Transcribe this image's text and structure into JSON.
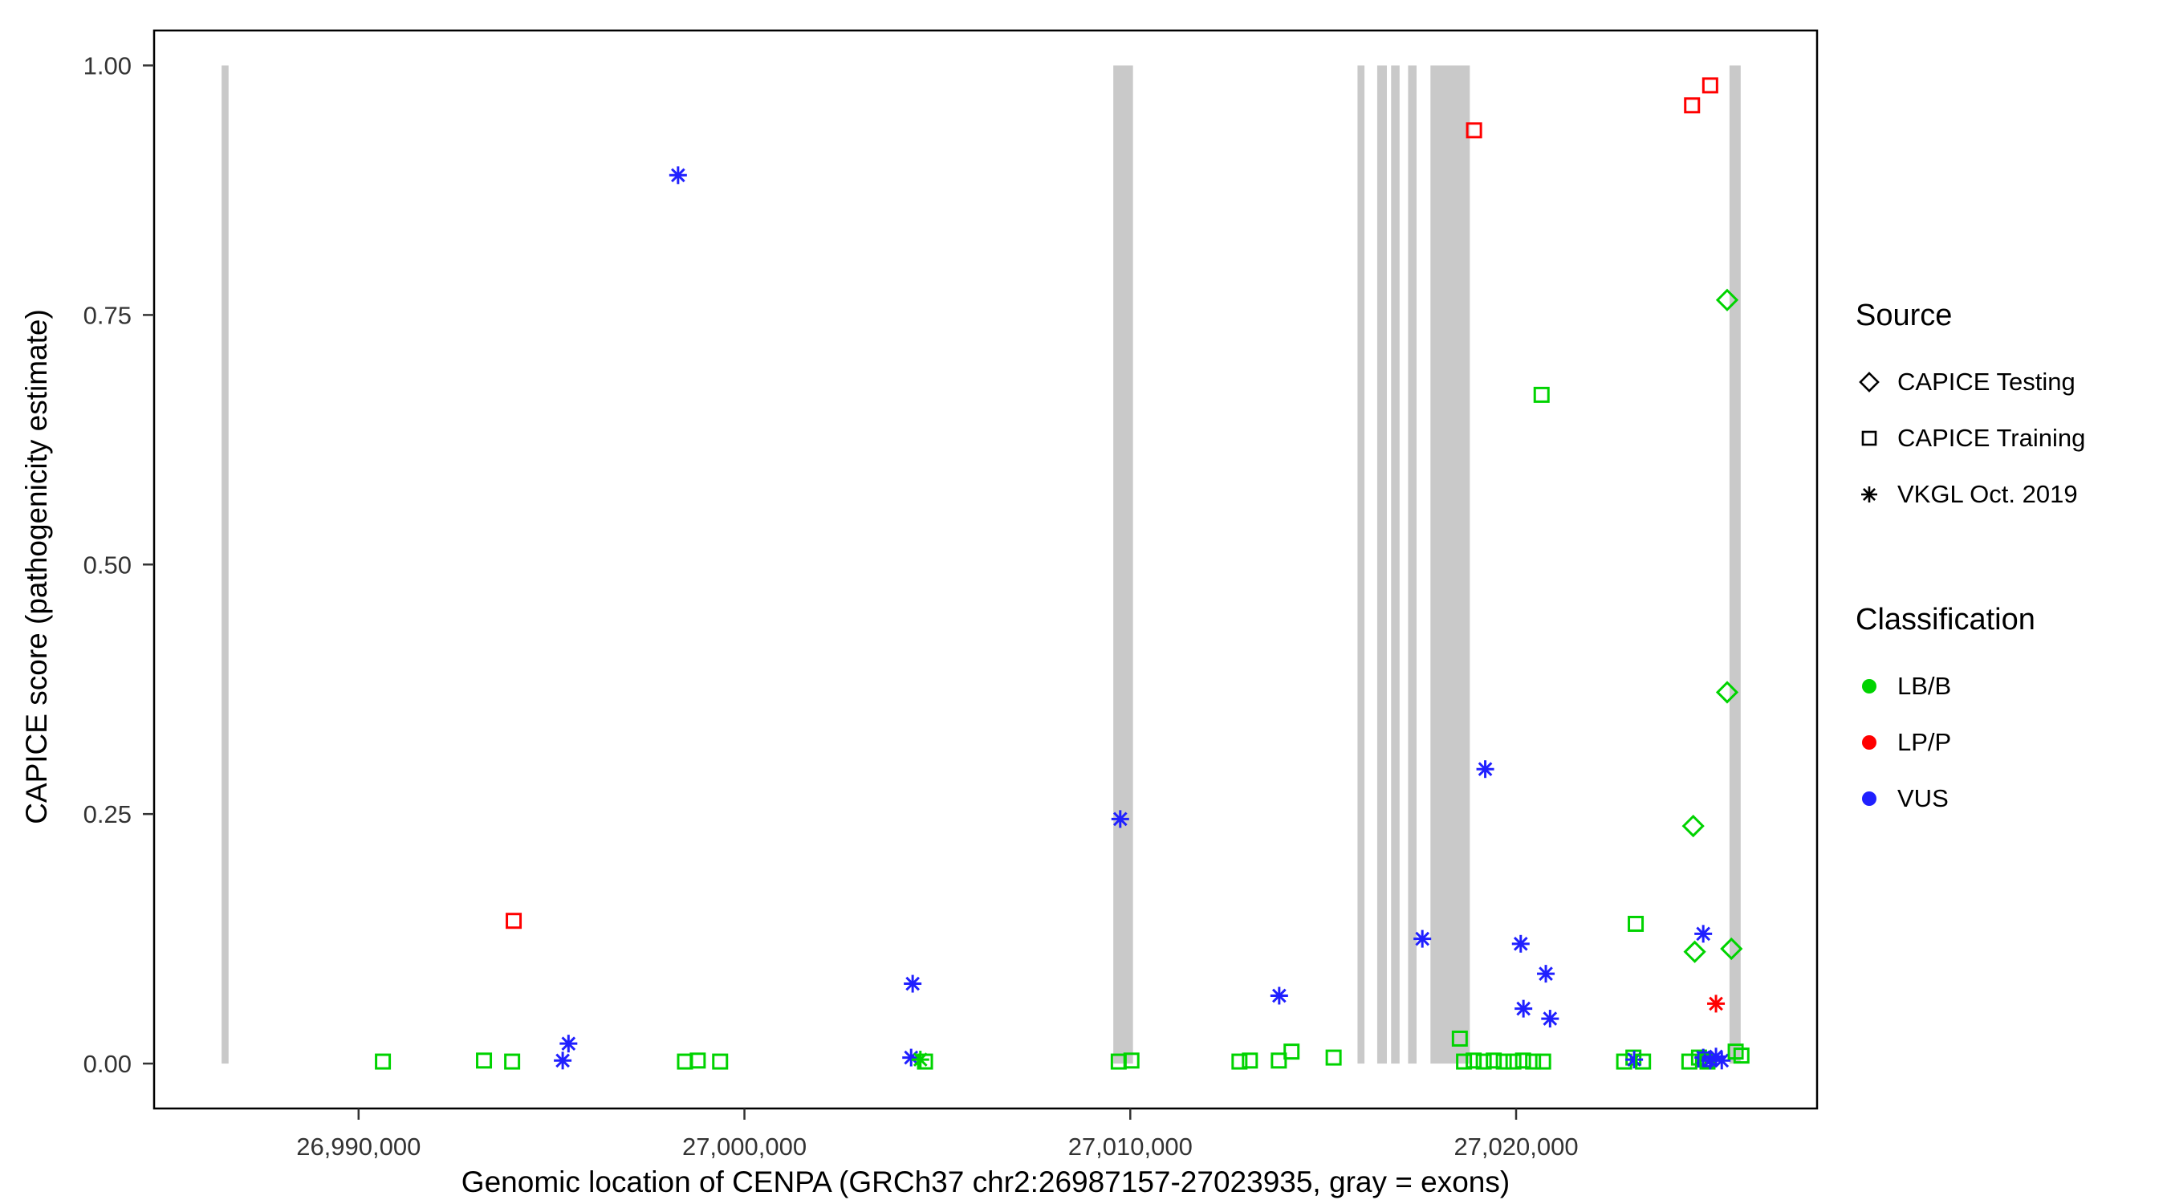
{
  "chart_data": {
    "type": "scatter",
    "title": "",
    "xlabel": "Genomic location of CENPA (GRCh37 chr2:26987157-27023935, gray = exons)",
    "ylabel": "CAPICE score (pathogenicity estimate)",
    "x_domain": [
      26984700,
      27027800
    ],
    "y_domain": [
      -0.045,
      1.035
    ],
    "x_ticks": [
      {
        "value": 26990000,
        "label": "26,990,000"
      },
      {
        "value": 27000000,
        "label": "27,000,000"
      },
      {
        "value": 27010000,
        "label": "27,010,000"
      },
      {
        "value": 27020000,
        "label": "27,020,000"
      }
    ],
    "y_ticks": [
      {
        "value": 0.0,
        "label": "0.00"
      },
      {
        "value": 0.25,
        "label": "0.25"
      },
      {
        "value": 0.5,
        "label": "0.50"
      },
      {
        "value": 0.75,
        "label": "0.75"
      },
      {
        "value": 1.0,
        "label": "1.00"
      }
    ],
    "gene_region": {
      "chrom": "chr2",
      "start": 26987157,
      "end": 27023935,
      "build": "GRCh37"
    },
    "exons": [
      [
        26986450,
        26986630
      ],
      [
        27009560,
        27010070
      ],
      [
        27015890,
        27016070
      ],
      [
        27016400,
        27016650
      ],
      [
        27016760,
        27016980
      ],
      [
        27017200,
        27017420
      ],
      [
        27017780,
        27018800
      ],
      [
        27025530,
        27025820
      ]
    ],
    "points": [
      {
        "x": 26998280,
        "y": 0.89,
        "src": "vkgl",
        "cls": "VUS"
      },
      {
        "x": 27018910,
        "y": 0.935,
        "src": "training",
        "cls": "LP/P"
      },
      {
        "x": 27024560,
        "y": 0.96,
        "src": "training",
        "cls": "LP/P"
      },
      {
        "x": 27025030,
        "y": 0.98,
        "src": "training",
        "cls": "LP/P"
      },
      {
        "x": 27025470,
        "y": 0.765,
        "src": "testing",
        "cls": "LB/B"
      },
      {
        "x": 27020660,
        "y": 0.67,
        "src": "training",
        "cls": "LB/B"
      },
      {
        "x": 27025470,
        "y": 0.372,
        "src": "testing",
        "cls": "LB/B"
      },
      {
        "x": 27019200,
        "y": 0.295,
        "src": "vkgl",
        "cls": "VUS"
      },
      {
        "x": 27009740,
        "y": 0.245,
        "src": "vkgl",
        "cls": "VUS"
      },
      {
        "x": 27024590,
        "y": 0.238,
        "src": "testing",
        "cls": "LB/B"
      },
      {
        "x": 26994020,
        "y": 0.143,
        "src": "training",
        "cls": "LP/P"
      },
      {
        "x": 27023100,
        "y": 0.14,
        "src": "training",
        "cls": "LB/B"
      },
      {
        "x": 27024850,
        "y": 0.13,
        "src": "vkgl",
        "cls": "VUS"
      },
      {
        "x": 27017570,
        "y": 0.125,
        "src": "vkgl",
        "cls": "VUS"
      },
      {
        "x": 27020120,
        "y": 0.12,
        "src": "vkgl",
        "cls": "VUS"
      },
      {
        "x": 27024630,
        "y": 0.112,
        "src": "testing",
        "cls": "LB/B"
      },
      {
        "x": 27025580,
        "y": 0.115,
        "src": "testing",
        "cls": "LB/B"
      },
      {
        "x": 27020770,
        "y": 0.09,
        "src": "vkgl",
        "cls": "VUS"
      },
      {
        "x": 27004360,
        "y": 0.08,
        "src": "vkgl",
        "cls": "VUS"
      },
      {
        "x": 27013860,
        "y": 0.068,
        "src": "vkgl",
        "cls": "VUS"
      },
      {
        "x": 27025180,
        "y": 0.06,
        "src": "vkgl",
        "cls": "LP/P"
      },
      {
        "x": 27020190,
        "y": 0.055,
        "src": "vkgl",
        "cls": "VUS"
      },
      {
        "x": 27020880,
        "y": 0.045,
        "src": "vkgl",
        "cls": "VUS"
      },
      {
        "x": 26995440,
        "y": 0.02,
        "src": "vkgl",
        "cls": "VUS"
      },
      {
        "x": 26990630,
        "y": 0.002,
        "src": "training",
        "cls": "LB/B"
      },
      {
        "x": 26993250,
        "y": 0.003,
        "src": "training",
        "cls": "LB/B"
      },
      {
        "x": 26993980,
        "y": 0.002,
        "src": "training",
        "cls": "LB/B"
      },
      {
        "x": 26995290,
        "y": 0.003,
        "src": "vkgl",
        "cls": "VUS"
      },
      {
        "x": 26998460,
        "y": 0.002,
        "src": "training",
        "cls": "LB/B"
      },
      {
        "x": 26998790,
        "y": 0.003,
        "src": "training",
        "cls": "LB/B"
      },
      {
        "x": 26999370,
        "y": 0.002,
        "src": "training",
        "cls": "LB/B"
      },
      {
        "x": 27004320,
        "y": 0.006,
        "src": "vkgl",
        "cls": "VUS"
      },
      {
        "x": 27004560,
        "y": 0.004,
        "src": "vkgl",
        "cls": "LB/B"
      },
      {
        "x": 27004680,
        "y": 0.002,
        "src": "training",
        "cls": "LB/B"
      },
      {
        "x": 27009700,
        "y": 0.002,
        "src": "training",
        "cls": "LB/B"
      },
      {
        "x": 27010030,
        "y": 0.003,
        "src": "training",
        "cls": "LB/B"
      },
      {
        "x": 27012830,
        "y": 0.002,
        "src": "training",
        "cls": "LB/B"
      },
      {
        "x": 27013100,
        "y": 0.003,
        "src": "training",
        "cls": "LB/B"
      },
      {
        "x": 27013850,
        "y": 0.003,
        "src": "training",
        "cls": "LB/B"
      },
      {
        "x": 27014180,
        "y": 0.012,
        "src": "training",
        "cls": "LB/B"
      },
      {
        "x": 27015270,
        "y": 0.006,
        "src": "training",
        "cls": "LB/B"
      },
      {
        "x": 27018540,
        "y": 0.025,
        "src": "training",
        "cls": "LB/B"
      },
      {
        "x": 27018650,
        "y": 0.002,
        "src": "training",
        "cls": "LB/B"
      },
      {
        "x": 27018900,
        "y": 0.003,
        "src": "training",
        "cls": "LB/B"
      },
      {
        "x": 27019160,
        "y": 0.002,
        "src": "training",
        "cls": "LB/B"
      },
      {
        "x": 27019420,
        "y": 0.003,
        "src": "training",
        "cls": "LB/B"
      },
      {
        "x": 27019680,
        "y": 0.002,
        "src": "training",
        "cls": "LB/B"
      },
      {
        "x": 27019930,
        "y": 0.002,
        "src": "training",
        "cls": "LB/B"
      },
      {
        "x": 27020180,
        "y": 0.003,
        "src": "training",
        "cls": "LB/B"
      },
      {
        "x": 27020440,
        "y": 0.002,
        "src": "training",
        "cls": "LB/B"
      },
      {
        "x": 27020700,
        "y": 0.002,
        "src": "training",
        "cls": "LB/B"
      },
      {
        "x": 27022800,
        "y": 0.002,
        "src": "training",
        "cls": "LB/B"
      },
      {
        "x": 27023040,
        "y": 0.006,
        "src": "training",
        "cls": "LB/B"
      },
      {
        "x": 27023060,
        "y": 0.004,
        "src": "vkgl",
        "cls": "VUS"
      },
      {
        "x": 27023290,
        "y": 0.002,
        "src": "training",
        "cls": "LB/B"
      },
      {
        "x": 27024490,
        "y": 0.002,
        "src": "training",
        "cls": "LB/B"
      },
      {
        "x": 27024740,
        "y": 0.006,
        "src": "training",
        "cls": "LB/B"
      },
      {
        "x": 27024850,
        "y": 0.006,
        "src": "vkgl",
        "cls": "VUS"
      },
      {
        "x": 27024900,
        "y": 0.004,
        "src": "training",
        "cls": "VUS"
      },
      {
        "x": 27024960,
        "y": 0.002,
        "src": "training",
        "cls": "LB/B"
      },
      {
        "x": 27025030,
        "y": 0.003,
        "src": "vkgl",
        "cls": "VUS"
      },
      {
        "x": 27025180,
        "y": 0.007,
        "src": "vkgl",
        "cls": "VUS"
      },
      {
        "x": 27025330,
        "y": 0.003,
        "src": "vkgl",
        "cls": "VUS"
      },
      {
        "x": 27025690,
        "y": 0.012,
        "src": "training",
        "cls": "LB/B"
      },
      {
        "x": 27025840,
        "y": 0.008,
        "src": "training",
        "cls": "LB/B"
      }
    ]
  },
  "legend": {
    "source": {
      "title": "Source",
      "items": [
        {
          "label": "CAPICE Testing",
          "marker": "diamond"
        },
        {
          "label": "CAPICE Training",
          "marker": "square"
        },
        {
          "label": "VKGL Oct. 2019",
          "marker": "asterisk"
        }
      ]
    },
    "classification": {
      "title": "Classification",
      "items": [
        {
          "label": "LB/B",
          "color": "#00D300"
        },
        {
          "label": "LP/P",
          "color": "#FF0000"
        },
        {
          "label": "VUS",
          "color": "#2020FF"
        }
      ]
    }
  },
  "colors": {
    "LB/B": "#00D300",
    "LP/P": "#FF0000",
    "VUS": "#2020FF",
    "exon": "#C9C9C9",
    "axis_text": "#333333",
    "panel_border": "#000000"
  }
}
